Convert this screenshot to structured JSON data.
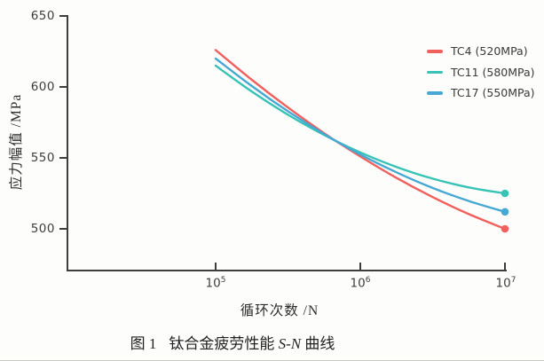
{
  "figure": {
    "caption_prefix": "图 1",
    "caption_pre": "钛合金疲劳性能 ",
    "caption_italic": "S-N",
    "caption_post": " 曲线"
  },
  "axes": {
    "y_label": "应力幅值 /MPa",
    "x_label": "循环次数 /N",
    "y_ticks": [
      "650",
      "600",
      "550",
      "500"
    ],
    "x_ticks": [
      {
        "base": "10",
        "exp": "5"
      },
      {
        "base": "10",
        "exp": "6"
      },
      {
        "base": "10",
        "exp": "7"
      }
    ]
  },
  "chart_data": {
    "type": "line",
    "title": "钛合金疲劳性能 S-N 曲线",
    "xlabel": "循环次数 /N",
    "ylabel": "应力幅值 /MPa",
    "x_scale": "log10",
    "x_range_log10": [
      4,
      7
    ],
    "x_tick_values": [
      100000,
      1000000,
      10000000
    ],
    "ylim": [
      470,
      650
    ],
    "y_tick_values": [
      650,
      600,
      550,
      500
    ],
    "grid": false,
    "legend_position": "top-right",
    "crossover_point": {
      "log10_cycles": 5.83,
      "stress_mpa": 562
    },
    "series": [
      {
        "id": "tc4",
        "name": "TC4 (520MPa)",
        "color": "#f1605d",
        "end_marker": true,
        "log10_cycles": [
          5,
          5.25,
          5.5,
          5.75,
          6,
          6.25,
          6.5,
          6.75,
          7
        ],
        "stress_mpa": [
          626,
          605,
          585.5,
          567.4,
          551,
          535.9,
          522.4,
          510.4,
          500
        ]
      },
      {
        "id": "tc11",
        "name": "TC11 (580MPa)",
        "color": "#37c3b6",
        "end_marker": true,
        "log10_cycles": [
          5,
          5.25,
          5.5,
          5.75,
          6,
          6.25,
          6.5,
          6.75,
          7
        ],
        "stress_mpa": [
          615,
          596.7,
          580.4,
          566.1,
          553.9,
          543.6,
          535.4,
          529.2,
          525
        ]
      },
      {
        "id": "tc17",
        "name": "TC17 (550MPa)",
        "color": "#48a8d4",
        "end_marker": true,
        "log10_cycles": [
          5,
          5.25,
          5.5,
          5.75,
          6,
          6.25,
          6.5,
          6.75,
          7
        ],
        "stress_mpa": [
          620,
          600.6,
          582.8,
          566.8,
          552.4,
          539.8,
          528.8,
          519.6,
          512
        ]
      }
    ]
  }
}
